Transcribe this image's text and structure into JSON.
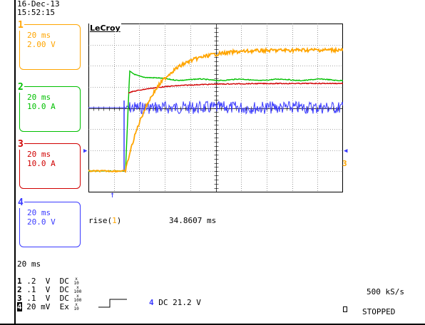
{
  "datetime": {
    "date": "16-Dec-13",
    "time": "15:52:15"
  },
  "brand": "LeCroy",
  "channels": [
    {
      "num": "1",
      "color": "#ffa500",
      "timebase": "20 ms",
      "scale": "2.00 V"
    },
    {
      "num": "2",
      "color": "#00c000",
      "timebase": "20 ms",
      "scale": "10.0 A"
    },
    {
      "num": "3",
      "color": "#d00000",
      "timebase": "20 ms",
      "scale": "10.0 A"
    },
    {
      "num": "4",
      "color": "#3a3aff",
      "timebase": "20 ms",
      "scale": "20.0 V"
    }
  ],
  "measurement": {
    "name": "rise(",
    "channel": "1",
    "close": ")",
    "value": "34.8607 ms"
  },
  "acquisition": {
    "timebase": "20 ms",
    "rows": [
      {
        "num": "1",
        "v": ".2",
        "unit": "V",
        "coupling": "DC",
        "frac_top": "x",
        "frac_bot": "10"
      },
      {
        "num": "2",
        "v": ".1",
        "unit": "V",
        "coupling": "DC",
        "frac_top": "x",
        "frac_bot": "100"
      },
      {
        "num": "3",
        "v": ".1",
        "unit": "V",
        "coupling": "DC",
        "frac_top": "x",
        "frac_bot": "100"
      },
      {
        "num": "4",
        "v": "20",
        "unit": "mV",
        "coupling": "Ex",
        "frac_top": "x",
        "frac_bot": "10"
      }
    ],
    "trigger_channel": "4",
    "trigger_text": "DC 21.2 V",
    "sample_rate": "500 kS/s",
    "status": "STOPPED"
  },
  "colors": {
    "ch1": "#ffa500",
    "ch2": "#00c000",
    "ch3": "#d00000",
    "ch4": "#3a3aff",
    "grid": "#000000"
  }
}
